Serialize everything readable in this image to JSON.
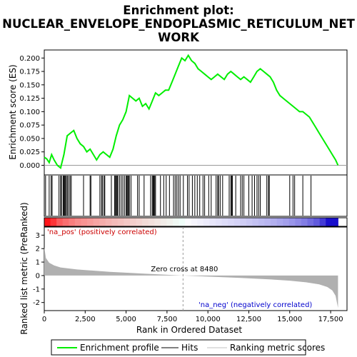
{
  "chart_data": {
    "type": "line",
    "title_lines": [
      "Enrichment plot:",
      "NUCLEAR_ENVELOPE_ENDOPLASMIC_RETICULUM_NET",
      "WORK"
    ],
    "top_panel": {
      "ylabel": "Enrichment score (ES)",
      "ylim": [
        -0.018,
        0.215
      ],
      "yticks": [
        0.0,
        0.025,
        0.05,
        0.075,
        0.1,
        0.125,
        0.15,
        0.175,
        0.2
      ],
      "ytick_labels": [
        "0.000",
        "0.025",
        "0.050",
        "0.075",
        "0.100",
        "0.125",
        "0.150",
        "0.175",
        "0.200"
      ],
      "series_name": "Enrichment profile",
      "series_color": "#00ee00",
      "x": [
        0,
        150,
        300,
        450,
        600,
        800,
        1000,
        1200,
        1400,
        1600,
        1800,
        2000,
        2200,
        2400,
        2600,
        2800,
        3000,
        3200,
        3400,
        3600,
        3800,
        4000,
        4200,
        4400,
        4600,
        4800,
        5000,
        5200,
        5400,
        5600,
        5800,
        6000,
        6200,
        6400,
        6600,
        6800,
        7000,
        7200,
        7400,
        7600,
        7800,
        8000,
        8200,
        8400,
        8600,
        8800,
        9000,
        9200,
        9400,
        9600,
        9800,
        10000,
        10200,
        10400,
        10600,
        10800,
        11000,
        11200,
        11400,
        11600,
        11800,
        12000,
        12200,
        12400,
        12600,
        12800,
        13000,
        13200,
        13400,
        13600,
        13800,
        14000,
        14200,
        14400,
        14600,
        14800,
        15000,
        15200,
        15400,
        15600,
        15800,
        16000,
        16200,
        16400,
        16600,
        16800,
        17000,
        17200,
        17400,
        17600,
        17800,
        17950
      ],
      "y": [
        0.015,
        0.012,
        0.005,
        0.02,
        0.01,
        0.0,
        -0.005,
        0.02,
        0.055,
        0.06,
        0.065,
        0.05,
        0.04,
        0.035,
        0.025,
        0.03,
        0.02,
        0.01,
        0.02,
        0.025,
        0.02,
        0.015,
        0.03,
        0.055,
        0.075,
        0.085,
        0.1,
        0.13,
        0.125,
        0.12,
        0.125,
        0.11,
        0.115,
        0.105,
        0.12,
        0.135,
        0.13,
        0.135,
        0.14,
        0.14,
        0.155,
        0.17,
        0.185,
        0.2,
        0.195,
        0.205,
        0.195,
        0.19,
        0.18,
        0.175,
        0.17,
        0.165,
        0.16,
        0.165,
        0.17,
        0.165,
        0.16,
        0.17,
        0.175,
        0.17,
        0.165,
        0.16,
        0.165,
        0.16,
        0.155,
        0.165,
        0.175,
        0.18,
        0.175,
        0.17,
        0.165,
        0.155,
        0.14,
        0.13,
        0.125,
        0.12,
        0.115,
        0.11,
        0.105,
        0.1,
        0.1,
        0.095,
        0.09,
        0.08,
        0.07,
        0.06,
        0.05,
        0.04,
        0.03,
        0.02,
        0.01,
        0.0
      ]
    },
    "hits_panel": {
      "series_name": "Hits",
      "hit_positions": [
        80,
        300,
        420,
        480,
        900,
        1000,
        1050,
        1150,
        1200,
        1250,
        1300,
        1350,
        1420,
        1500,
        1580,
        1650,
        2400,
        2800,
        2850,
        3400,
        3500,
        3550,
        3650,
        3700,
        4100,
        4300,
        4350,
        4400,
        4450,
        4500,
        4600,
        4700,
        4800,
        4900,
        5000,
        5050,
        5100,
        5150,
        5200,
        5300,
        5700,
        5800,
        6100,
        6500,
        6600,
        6650,
        6700,
        6750,
        6800,
        7100,
        7300,
        7450,
        7650,
        7900,
        8000,
        8100,
        8200,
        8300,
        8500,
        8750,
        8850,
        9050,
        9200,
        9350,
        9500,
        9700,
        9800,
        10050,
        10200,
        10500,
        10600,
        10650,
        10750,
        10900,
        11300,
        11400,
        11450,
        11500,
        11700,
        12000,
        12100,
        12200,
        12500,
        12700,
        12850,
        13000,
        13100,
        13200,
        13600,
        13700,
        13750,
        15000,
        15200,
        15300,
        15800,
        16300
      ]
    },
    "rank_panel": {
      "ylabel": "Ranked list metric (PreRanked)",
      "ylim": [
        -2.6,
        3.6
      ],
      "yticks": [
        -2,
        -1,
        0,
        1,
        2,
        3
      ],
      "ytick_labels": [
        "-2",
        "-1",
        "0",
        "1",
        "2",
        "3"
      ],
      "series_name": "Ranking metric scores",
      "metric_x": [
        0,
        100,
        300,
        600,
        1000,
        2000,
        4000,
        6000,
        8480,
        10000,
        12000,
        14000,
        15000,
        16000,
        16800,
        17300,
        17600,
        17800,
        17950
      ],
      "metric_y": [
        2.1,
        1.3,
        0.95,
        0.75,
        0.6,
        0.45,
        0.28,
        0.15,
        0.0,
        -0.08,
        -0.18,
        -0.3,
        -0.38,
        -0.5,
        -0.65,
        -0.85,
        -1.1,
        -1.5,
        -2.4
      ],
      "pos_label": "'na_pos' (positively correlated)",
      "neg_label": "'na_neg' (negatively correlated)",
      "zero_cross_label": "Zero cross at 8480",
      "zero_cross": 8480
    },
    "xlabel": "Rank in Ordered Dataset",
    "xlim": [
      0,
      18500
    ],
    "xticks": [
      0,
      2500,
      5000,
      7500,
      10000,
      12500,
      15000,
      17500
    ],
    "xtick_labels": [
      "0",
      "2,500",
      "5,000",
      "7,500",
      "10,000",
      "12,500",
      "15,000",
      "17,500"
    ],
    "n_genes": 17950,
    "colors": {
      "enrichment": "#00ee00",
      "pos_label": "#cc0000",
      "neg_label": "#0000cc",
      "metric_fill": "#b0b0b0",
      "bar_red": "#ee1111",
      "bar_blue": "#2211cc"
    },
    "legend": {
      "items": [
        {
          "label": "Enrichment profile",
          "swatch": "line-green"
        },
        {
          "label": "Hits",
          "swatch": "line-black"
        },
        {
          "label": "Ranking metric scores",
          "swatch": "line-gray"
        }
      ]
    }
  }
}
